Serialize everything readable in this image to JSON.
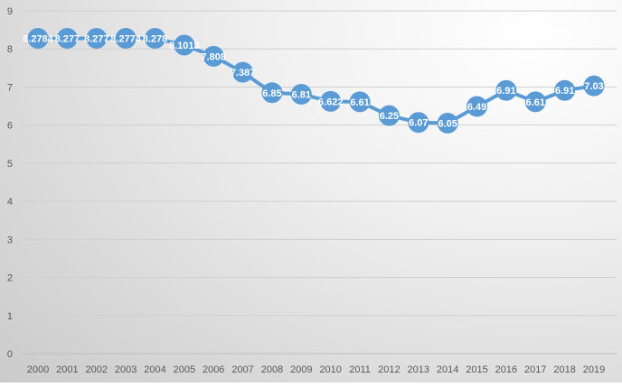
{
  "chart_data": {
    "type": "line",
    "title": "",
    "xlabel": "",
    "ylabel": "",
    "ylim": [
      0,
      9
    ],
    "yticks": [
      "0",
      "1",
      "2",
      "3",
      "4",
      "5",
      "6",
      "7",
      "8",
      "9"
    ],
    "categories": [
      "2000",
      "2001",
      "2002",
      "2003",
      "2004",
      "2005",
      "2006",
      "2007",
      "2008",
      "2009",
      "2010",
      "2011",
      "2012",
      "2013",
      "2014",
      "2015",
      "2016",
      "2017",
      "2018",
      "2019"
    ],
    "values": [
      8.2784,
      8.277,
      8.277,
      8.2774,
      8.278,
      8.1013,
      7.808,
      7.387,
      6.85,
      6.81,
      6.622,
      6.61,
      6.25,
      6.07,
      6.05,
      6.49,
      6.91,
      6.61,
      6.91,
      7.03
    ],
    "labels": [
      "8.2784",
      "8.277",
      "8.277",
      "8.2774",
      "8.278",
      "8.1013",
      "7.808",
      "7.387",
      "6.85",
      "6.81",
      "6.622",
      "6.61",
      "6.25",
      "6.07",
      "6.05",
      "6.49",
      "6.91",
      "6.61",
      "6.91",
      "7.03"
    ],
    "grid": true,
    "legend": "none",
    "color": "#5b9bd5"
  }
}
